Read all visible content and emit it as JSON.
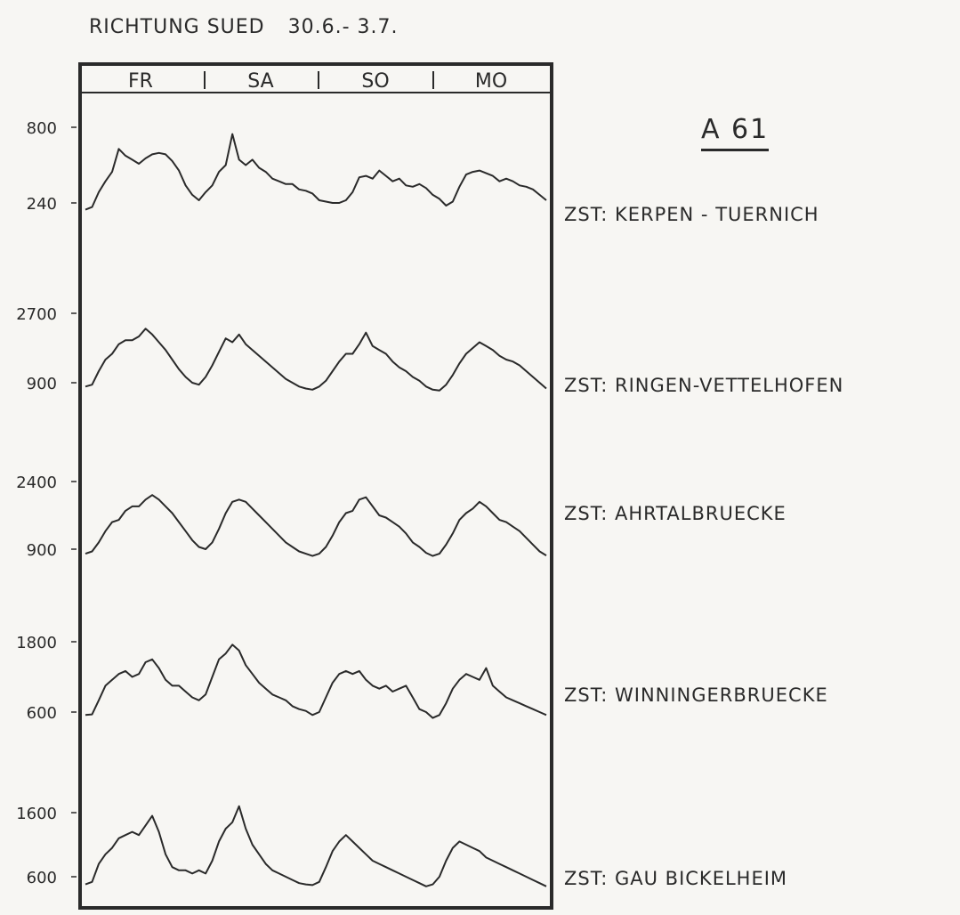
{
  "header": {
    "title": "RICHTUNG SUED",
    "date_range": "30.6.- 3.7."
  },
  "route_label": "A 61",
  "chart_data": {
    "type": "line",
    "title": "RICHTUNG SUED 30.6.- 3.7.",
    "days": [
      "FR",
      "SA",
      "SO",
      "MO"
    ],
    "grid": false,
    "panels": [
      {
        "station": "ZST: KERPEN - TUERNICH",
        "yticks": [
          800,
          240
        ],
        "values": [
          190,
          210,
          320,
          400,
          470,
          640,
          590,
          560,
          530,
          570,
          600,
          610,
          600,
          550,
          480,
          370,
          300,
          260,
          320,
          370,
          470,
          520,
          750,
          560,
          520,
          560,
          500,
          470,
          420,
          400,
          380,
          380,
          340,
          330,
          310,
          260,
          250,
          240,
          240,
          260,
          320,
          430,
          440,
          420,
          480,
          440,
          400,
          420,
          370,
          360,
          380,
          350,
          300,
          270,
          220,
          250,
          360,
          450,
          470,
          480,
          460,
          440,
          400,
          420,
          400,
          370,
          360,
          340,
          300,
          260
        ]
      },
      {
        "station": "ZST: RINGEN-VETTELHOFEN",
        "yticks": [
          2700,
          900
        ],
        "values": [
          800,
          850,
          1200,
          1500,
          1650,
          1900,
          2000,
          2000,
          2100,
          2300,
          2150,
          1950,
          1750,
          1500,
          1250,
          1050,
          900,
          850,
          1050,
          1350,
          1700,
          2050,
          1950,
          2150,
          1900,
          1750,
          1600,
          1450,
          1300,
          1150,
          1000,
          900,
          800,
          750,
          720,
          800,
          950,
          1200,
          1450,
          1650,
          1650,
          1900,
          2200,
          1850,
          1750,
          1650,
          1450,
          1300,
          1200,
          1050,
          950,
          800,
          720,
          700,
          850,
          1100,
          1400,
          1650,
          1800,
          1950,
          1850,
          1750,
          1600,
          1500,
          1450,
          1350,
          1200,
          1050,
          900,
          750
        ]
      },
      {
        "station": "ZST: AHRTALBRUECKE",
        "yticks": [
          2400,
          900
        ],
        "values": [
          800,
          850,
          1050,
          1300,
          1500,
          1550,
          1750,
          1850,
          1850,
          2000,
          2100,
          2000,
          1850,
          1700,
          1500,
          1300,
          1100,
          950,
          900,
          1050,
          1350,
          1700,
          1950,
          2000,
          1950,
          1800,
          1650,
          1500,
          1350,
          1200,
          1050,
          950,
          850,
          800,
          750,
          800,
          950,
          1200,
          1500,
          1700,
          1750,
          2000,
          2050,
          1850,
          1650,
          1600,
          1500,
          1400,
          1250,
          1050,
          950,
          820,
          750,
          800,
          1000,
          1250,
          1550,
          1700,
          1800,
          1950,
          1850,
          1700,
          1550,
          1500,
          1400,
          1300,
          1150,
          1000,
          850,
          760
        ]
      },
      {
        "station": "ZST: WINNINGERBRUECKE",
        "yticks": [
          1800,
          600
        ],
        "values": [
          550,
          560,
          800,
          1050,
          1150,
          1250,
          1300,
          1200,
          1250,
          1450,
          1500,
          1350,
          1150,
          1050,
          1050,
          950,
          850,
          800,
          900,
          1200,
          1500,
          1600,
          1750,
          1650,
          1400,
          1250,
          1100,
          1000,
          900,
          850,
          800,
          700,
          650,
          620,
          550,
          600,
          850,
          1100,
          1250,
          1300,
          1250,
          1300,
          1150,
          1050,
          1000,
          1050,
          950,
          1000,
          1050,
          850,
          650,
          600,
          500,
          550,
          750,
          1000,
          1150,
          1250,
          1200,
          1150,
          1350,
          1050,
          950,
          850,
          800,
          750,
          700,
          650,
          600,
          550
        ]
      },
      {
        "station": "ZST: GAU BICKELHEIM",
        "yticks": [
          1600,
          600
        ],
        "values": [
          480,
          520,
          800,
          950,
          1050,
          1200,
          1250,
          1300,
          1250,
          1400,
          1550,
          1300,
          950,
          750,
          700,
          700,
          650,
          700,
          650,
          850,
          1150,
          1350,
          1450,
          1700,
          1350,
          1100,
          950,
          800,
          700,
          650,
          600,
          550,
          500,
          480,
          470,
          520,
          750,
          1000,
          1150,
          1250,
          1150,
          1050,
          950,
          850,
          800,
          750,
          700,
          650,
          600,
          550,
          500,
          450,
          480,
          600,
          850,
          1050,
          1150,
          1100,
          1050,
          1000,
          900,
          850,
          800,
          750,
          700,
          650,
          600,
          550,
          500,
          450
        ]
      }
    ]
  }
}
